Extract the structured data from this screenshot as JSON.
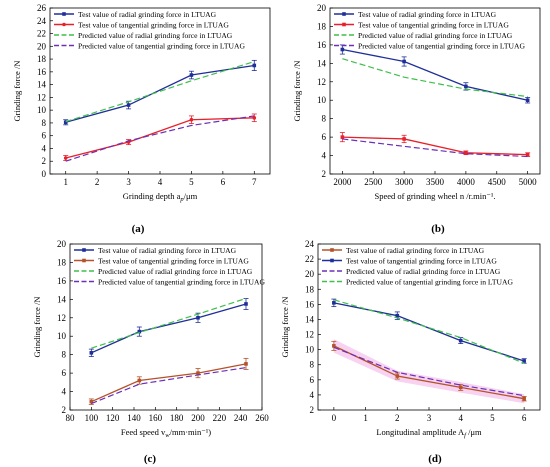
{
  "colors": {
    "blue": "#1f2f9a",
    "red": "#e8202a",
    "brown": "#b5522a",
    "green_dashed": "#3fbf4a",
    "purple_dashed": "#6b2fb8",
    "pink_shade": "#f2b6e8"
  },
  "chart_data": [
    {
      "panel": "(a)",
      "type": "line",
      "xlabel": "Grinding depth a",
      "xlabel_sub": "p",
      "xlabel_unit": "/μm",
      "ylabel": "Grinding force /N",
      "xlim": [
        0.5,
        7.5
      ],
      "ylim": [
        0,
        26
      ],
      "xticks": [
        1,
        2,
        3,
        4,
        5,
        6,
        7
      ],
      "yticks": [
        0,
        2,
        4,
        6,
        8,
        10,
        12,
        14,
        16,
        18,
        20,
        22,
        24,
        26
      ],
      "legend_position": "top-left",
      "series": [
        {
          "name": "Test value of radial grinding force in LTUAG",
          "style": "solid",
          "color": "blue",
          "marker": "square",
          "x": [
            1,
            3,
            5,
            7
          ],
          "y": [
            8.1,
            10.8,
            15.5,
            17.0
          ],
          "err": [
            0.4,
            0.6,
            0.6,
            0.8
          ]
        },
        {
          "name": "Test value of tangential grinding force in LTUAG",
          "style": "solid",
          "color": "red",
          "marker": "circle",
          "x": [
            1,
            3,
            5,
            7
          ],
          "y": [
            2.5,
            5.0,
            8.5,
            8.8
          ],
          "err": [
            0.4,
            0.4,
            0.6,
            0.6
          ]
        },
        {
          "name": "Predicted value of radial grinding force in LTUAG",
          "style": "dashed",
          "color": "green_dashed",
          "x": [
            1,
            3,
            5,
            7
          ],
          "y": [
            8.2,
            11.3,
            14.6,
            17.6
          ]
        },
        {
          "name": "Predicted value of tangential grinding force in LTUAG",
          "style": "dashed",
          "color": "purple_dashed",
          "x": [
            1,
            3,
            5,
            7
          ],
          "y": [
            2.0,
            5.2,
            7.6,
            9.1
          ]
        }
      ]
    },
    {
      "panel": "(b)",
      "type": "line",
      "xlabel": "Speed of grinding wheel n",
      "xlabel_unit": " /r.min⁻¹.",
      "ylabel": "Grinding force /N",
      "xlim": [
        1800,
        5200
      ],
      "ylim": [
        2,
        20
      ],
      "xticks": [
        2000,
        2500,
        3000,
        3500,
        4000,
        4500,
        5000
      ],
      "yticks": [
        2,
        4,
        6,
        8,
        10,
        12,
        14,
        16,
        18,
        20
      ],
      "legend_position": "top-left",
      "series": [
        {
          "name": "Test value of radial grinding force in LTUAG",
          "style": "solid",
          "color": "blue",
          "x": [
            2000,
            3000,
            4000,
            5000
          ],
          "y": [
            15.5,
            14.2,
            11.5,
            10.0
          ],
          "err": [
            0.5,
            0.5,
            0.4,
            0.3
          ]
        },
        {
          "name": "Test value of tangential grinding force in LTUAG",
          "style": "solid",
          "color": "red",
          "x": [
            2000,
            3000,
            4000,
            5000
          ],
          "y": [
            6.0,
            5.8,
            4.3,
            4.1
          ],
          "err": [
            0.5,
            0.4,
            0.2,
            0.2
          ]
        },
        {
          "name": "Predicted value of radial grinding force in LTUAG",
          "style": "dashed",
          "color": "green_dashed",
          "x": [
            2000,
            3000,
            4000,
            5000
          ],
          "y": [
            14.5,
            12.5,
            11.2,
            10.4
          ]
        },
        {
          "name": "Predicted value of tangential grinding force in LTUAG",
          "style": "dashed",
          "color": "purple_dashed",
          "x": [
            2000,
            3000,
            4000,
            5000
          ],
          "y": [
            5.8,
            5.0,
            4.2,
            3.9
          ]
        }
      ]
    },
    {
      "panel": "(c)",
      "type": "line",
      "xlabel": "Feed speed v",
      "xlabel_sub": "w",
      "xlabel_unit": "/mm·min⁻¹)",
      "ylabel": "Grinding force /N",
      "xlim": [
        80,
        260
      ],
      "ylim": [
        2,
        20
      ],
      "xticks": [
        80,
        100,
        120,
        140,
        160,
        180,
        200,
        220,
        240,
        260
      ],
      "yticks": [
        2,
        4,
        6,
        8,
        10,
        12,
        14,
        16,
        18,
        20
      ],
      "legend_position": "top-left",
      "series": [
        {
          "name": "Test value of radial grinding force in LTUAG",
          "style": "solid",
          "color": "blue",
          "x": [
            100,
            145,
            200,
            245
          ],
          "y": [
            8.2,
            10.5,
            12.0,
            13.5
          ],
          "err": [
            0.4,
            0.5,
            0.5,
            0.6
          ]
        },
        {
          "name": "Test value of tangential grinding force in LTUAG",
          "style": "solid",
          "color": "brown",
          "x": [
            100,
            145,
            200,
            245
          ],
          "y": [
            2.9,
            5.2,
            6.0,
            7.0
          ],
          "err": [
            0.3,
            0.4,
            0.5,
            0.6
          ]
        },
        {
          "name": "Predicted value of radial grinding force in LTUAG",
          "style": "dashed",
          "color": "green_dashed",
          "x": [
            100,
            145,
            200,
            245
          ],
          "y": [
            8.7,
            10.4,
            12.4,
            14.1
          ]
        },
        {
          "name": "Predicted value of tangential grinding force in LTUAG",
          "style": "dashed",
          "color": "purple_dashed",
          "x": [
            100,
            145,
            200,
            245
          ],
          "y": [
            2.7,
            4.8,
            5.8,
            6.6
          ]
        }
      ]
    },
    {
      "panel": "(d)",
      "type": "line",
      "xlabel": "Longitudinal amplitude A",
      "xlabel_sub": "f",
      "xlabel_unit": " /μm",
      "ylabel": "Grinding force /N",
      "xlim": [
        -0.5,
        6.5
      ],
      "ylim": [
        2,
        24
      ],
      "xticks": [
        0,
        1,
        2,
        3,
        4,
        5,
        6
      ],
      "yticks": [
        2,
        4,
        6,
        8,
        10,
        12,
        14,
        16,
        18,
        20,
        22,
        24
      ],
      "legend_position": "top-left",
      "series": [
        {
          "name": "Test value of radial grinding force in LTUAG",
          "style": "solid",
          "color": "brown",
          "marker": "square",
          "x": [
            0,
            2,
            4,
            6
          ],
          "y": [
            10.5,
            6.5,
            5.0,
            3.5
          ],
          "err": [
            0.6,
            0.4,
            0.4,
            0.3
          ],
          "shade": true
        },
        {
          "name": "Test value of tangential grinding force in LTUAG",
          "style": "solid",
          "color": "blue",
          "marker": "square",
          "x": [
            0,
            2,
            4,
            6
          ],
          "y": [
            16.2,
            14.5,
            11.2,
            8.5
          ],
          "err": [
            0.5,
            0.5,
            0.4,
            0.3
          ]
        },
        {
          "name": "Predicted value of radial grinding force in LTUAG",
          "style": "dashed",
          "color": "purple_dashed",
          "x": [
            0,
            2,
            4,
            6
          ],
          "y": [
            10.3,
            7.0,
            5.3,
            3.9
          ]
        },
        {
          "name": "Predicted value of tangential grinding force in LTUAG",
          "style": "dashed",
          "color": "green_dashed",
          "x": [
            0,
            2,
            4,
            6
          ],
          "y": [
            16.6,
            14.2,
            11.6,
            8.2
          ]
        }
      ]
    }
  ]
}
